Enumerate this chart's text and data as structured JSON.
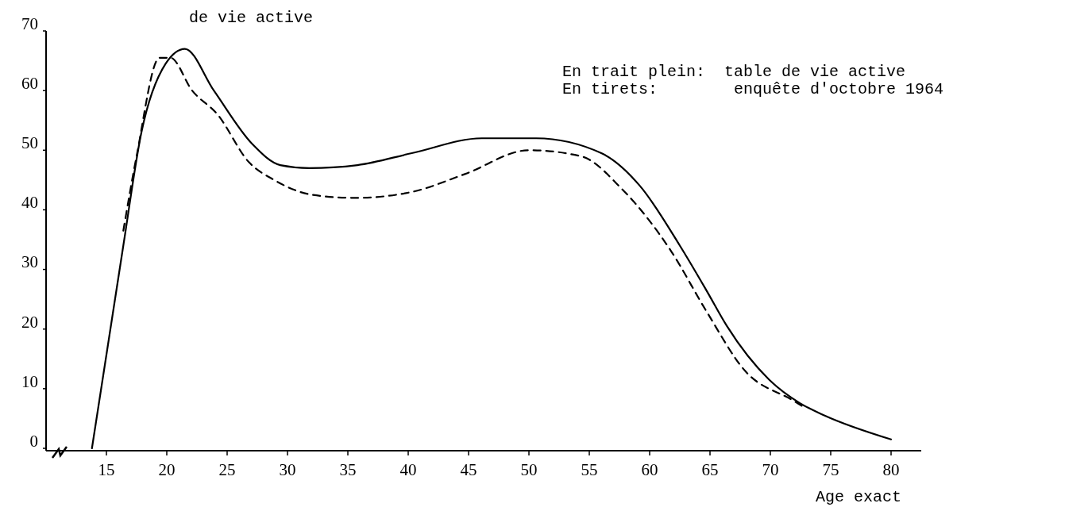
{
  "chart_data": {
    "type": "line",
    "title": "de vie active",
    "xlabel": "Age exact",
    "annotations": [
      "En trait plein:  table de vie active",
      "En tirets:        enquête d'octobre 1964"
    ],
    "xlim": [
      10,
      82.5
    ],
    "ylim": [
      0,
      70
    ],
    "xticks": [
      15,
      20,
      25,
      30,
      35,
      40,
      45,
      50,
      55,
      60,
      65,
      70,
      75,
      80
    ],
    "yticks": [
      0,
      10,
      20,
      30,
      40,
      50,
      60,
      70
    ],
    "grid": false,
    "marker": "none",
    "series": [
      {
        "color": "#000000",
        "line_style": "solid",
        "x": [
          13.8,
          16.4,
          17.9,
          19.9,
          21.5,
          23.9,
          27.1,
          29.4,
          31.8,
          35.8,
          40.3,
          46.1,
          50.6,
          56,
          59.2,
          62.5,
          64.7,
          66.4,
          69.9,
          72.5,
          74.5,
          80
        ],
        "values": [
          0,
          34,
          53,
          64.5,
          67,
          60,
          51,
          47.5,
          47,
          47.5,
          49.5,
          52,
          52,
          49.5,
          44,
          34,
          26.5,
          20.5,
          11.5,
          7.5,
          5.5,
          1.5
        ]
      },
      {
        "color": "#000000",
        "line_style": "dashed",
        "x": [
          16.4,
          17.5,
          19.4,
          20.3,
          22.1,
          24.2,
          26.8,
          28.9,
          32.1,
          35.6,
          40.3,
          44.7,
          50,
          54.3,
          57.7,
          61.8,
          64.7,
          67.9,
          71.9,
          72.7
        ],
        "values": [
          36.5,
          49,
          65.5,
          65.5,
          60,
          56,
          48,
          45,
          42.5,
          42,
          43,
          46,
          50,
          49,
          43.5,
          33,
          23,
          13,
          8,
          7
        ]
      }
    ]
  }
}
